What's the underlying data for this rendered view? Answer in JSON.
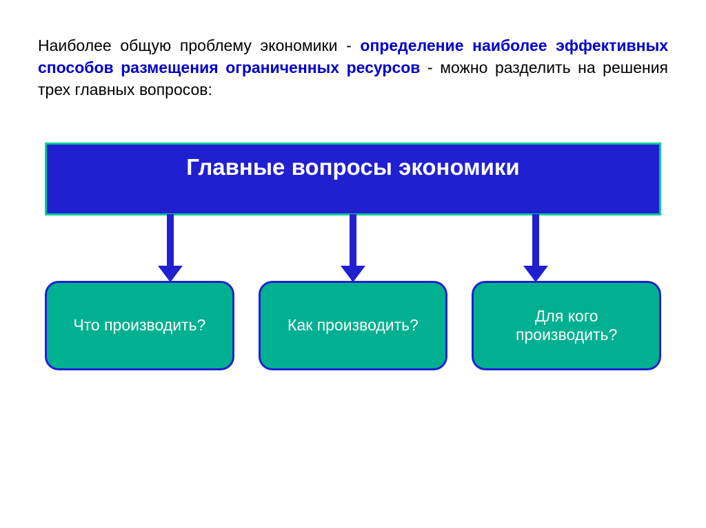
{
  "intro": {
    "part1": "Наиболее общую проблему экономики - ",
    "highlight": "определение наиболее эффективных способов размещения ограниченных ресурсов",
    "part2": " - можно разделить на решения трех главных вопросов:"
  },
  "main_box": {
    "title": "Главные вопросы экономики",
    "background_color": "#2020d0",
    "border_color": "#00cc99",
    "text_color": "#ffffff",
    "font_size": 33
  },
  "bottom_boxes": [
    {
      "label": "Что производить?"
    },
    {
      "label": "Как производить?"
    },
    {
      "label": "Для кого производить?"
    }
  ],
  "bottom_box_style": {
    "background_color": "#00b090",
    "border_color": "#2020d0",
    "text_color": "#ffffff",
    "font_size": 23,
    "border_radius": 20
  },
  "arrow_style": {
    "color": "#2020d0",
    "line_width": 10,
    "line_height": 75,
    "head_width": 36,
    "head_height": 24
  },
  "text_colors": {
    "black": "#000000",
    "blue": "#0000cc"
  },
  "diagram_type": "flowchart",
  "background_color": "#ffffff"
}
